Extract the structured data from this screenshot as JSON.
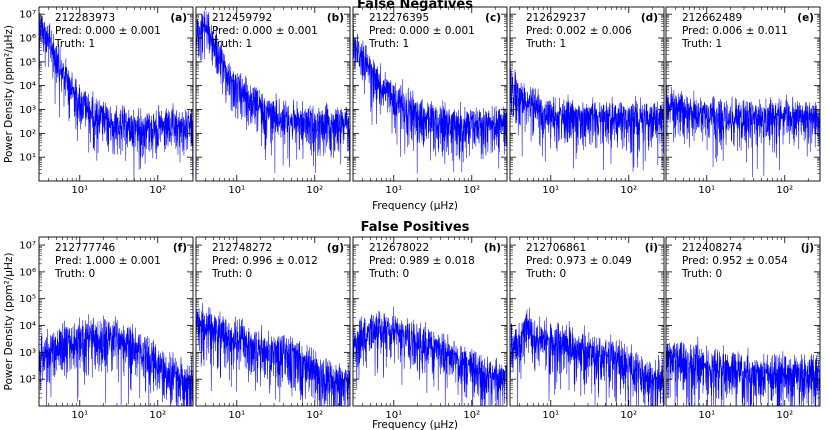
{
  "figure": {
    "ylabel_text": "Power Density (ppm²/μHz)",
    "xlabel_text": "Frequency (μHz)"
  },
  "chart_data": [
    {
      "type": "line",
      "row_title": "False Negatives",
      "panels": [
        {
          "id": "212283973",
          "pred": "Pred: 0.000 ± 0.001",
          "truth": "Truth: 1",
          "tag": "(a)",
          "x": [
            3,
            4,
            5,
            6,
            8,
            10,
            15,
            20,
            30,
            50,
            80,
            120,
            200,
            283
          ],
          "y": [
            8000000.0,
            1000000.0,
            200000.0,
            50000.0,
            10000.0,
            3000.0,
            1000.0,
            500.0,
            300.0,
            250.0,
            250.0,
            250.0,
            250.0,
            250.0
          ]
        },
        {
          "id": "212459792",
          "pred": "Pred: 0.000 ± 0.001",
          "truth": "Truth: 1",
          "tag": "(b)",
          "x": [
            3,
            4,
            5,
            6,
            8,
            10,
            15,
            20,
            30,
            50,
            80,
            120,
            200,
            283
          ],
          "y": [
            2000000.0,
            5000000.0,
            1000000.0,
            200000.0,
            30000.0,
            10000.0,
            3000.0,
            1500.0,
            800.0,
            500.0,
            350.0,
            300.0,
            300.0,
            300.0
          ]
        },
        {
          "id": "212276395",
          "pred": "Pred: 0.000 ± 0.001",
          "truth": "Truth: 1",
          "tag": "(c)",
          "x": [
            3,
            4,
            5,
            6,
            8,
            10,
            15,
            20,
            30,
            50,
            80,
            120,
            200,
            283
          ],
          "y": [
            1000000.0,
            200000.0,
            60000.0,
            20000.0,
            8000.0,
            4000.0,
            1500.0,
            800.0,
            500.0,
            400.0,
            350.0,
            350.0,
            350.0,
            350.0
          ]
        },
        {
          "id": "212629237",
          "pred": "Pred: 0.002 ± 0.006",
          "truth": "Truth: 1",
          "tag": "(d)",
          "x": [
            3,
            4,
            5,
            6,
            8,
            10,
            15,
            20,
            30,
            50,
            80,
            120,
            200,
            283
          ],
          "y": [
            15000.0,
            6000.0,
            3000.0,
            1500.0,
            1000.0,
            800.0,
            700.0,
            600.0,
            600.0,
            600.0,
            600.0,
            600.0,
            600.0,
            600.0
          ]
        },
        {
          "id": "212662489",
          "pred": "Pred: 0.006 ± 0.011",
          "truth": "Truth: 1",
          "tag": "(e)",
          "x": [
            3,
            4,
            5,
            6,
            8,
            10,
            15,
            20,
            30,
            50,
            80,
            120,
            200,
            283
          ],
          "y": [
            3000.0,
            2000.0,
            1200.0,
            1000.0,
            800.0,
            700.0,
            600.0,
            600.0,
            600.0,
            600.0,
            600.0,
            600.0,
            600.0,
            600.0
          ]
        }
      ],
      "xlim": [
        3,
        283
      ],
      "ylim": [
        1,
        20000000
      ],
      "xticks": [
        10,
        100
      ],
      "xtick_labels": [
        "10¹",
        "10²"
      ],
      "yticks": [
        10,
        100,
        1000,
        10000,
        100000,
        1000000,
        10000000
      ],
      "ytick_labels": [
        "10¹",
        "10²",
        "10³",
        "10⁴",
        "10⁵",
        "10⁶",
        "10⁷"
      ],
      "xscale": "log",
      "yscale": "log",
      "color": "#0000ff",
      "grid": false
    },
    {
      "type": "line",
      "row_title": "False Positives",
      "panels": [
        {
          "id": "212777746",
          "pred": "Pred: 1.000 ± 0.001",
          "truth": "Truth: 0",
          "tag": "(f)",
          "x": [
            3,
            4,
            5,
            6,
            8,
            10,
            15,
            20,
            30,
            50,
            80,
            120,
            200,
            283
          ],
          "y": [
            1000.0,
            1500.0,
            2000.0,
            2500.0,
            3000.0,
            4000.0,
            5000.0,
            5000.0,
            4000.0,
            2000.0,
            800.0,
            300.0,
            120.0,
            100.0
          ]
        },
        {
          "id": "212748272",
          "pred": "Pred: 0.996 ± 0.012",
          "truth": "Truth: 0",
          "tag": "(g)",
          "x": [
            3,
            4,
            5,
            6,
            8,
            10,
            15,
            20,
            30,
            50,
            80,
            120,
            200,
            283
          ],
          "y": [
            20000.0,
            10000.0,
            8000.0,
            6000.0,
            5000.0,
            4000.0,
            3000.0,
            2000.0,
            1500.0,
            800.0,
            400.0,
            200.0,
            100.0,
            80.0
          ]
        },
        {
          "id": "212678022",
          "pred": "Pred: 0.989 ± 0.018",
          "truth": "Truth: 0",
          "tag": "(h)",
          "x": [
            3,
            4,
            5,
            6,
            8,
            10,
            15,
            20,
            30,
            50,
            80,
            120,
            200,
            283
          ],
          "y": [
            3000.0,
            6000.0,
            10000.0,
            10000.0,
            8000.0,
            6000.0,
            4000.0,
            3000.0,
            2000.0,
            1000.0,
            500.0,
            250.0,
            150.0,
            120.0
          ]
        },
        {
          "id": "212706861",
          "pred": "Pred: 0.973 ± 0.049",
          "truth": "Truth: 0",
          "tag": "(i)",
          "x": [
            3,
            4,
            5,
            6,
            8,
            10,
            15,
            20,
            30,
            50,
            80,
            120,
            200,
            283
          ],
          "y": [
            2000.0,
            3000.0,
            20000.0,
            4000.0,
            5000.0,
            4000.0,
            3000.0,
            2000.0,
            1500.0,
            1000.0,
            500.0,
            300.0,
            150.0,
            120.0
          ]
        },
        {
          "id": "212408274",
          "pred": "Pred: 0.952 ± 0.054",
          "truth": "Truth: 0",
          "tag": "(j)",
          "x": [
            3,
            4,
            5,
            6,
            8,
            10,
            15,
            20,
            30,
            50,
            80,
            120,
            200,
            283
          ],
          "y": [
            1000.0,
            800.0,
            600.0,
            500.0,
            400.0,
            350.0,
            300.0,
            250.0,
            220.0,
            200.0,
            200.0,
            200.0,
            200.0,
            200.0
          ]
        }
      ],
      "xlim": [
        3,
        283
      ],
      "ylim": [
        10,
        20000000
      ],
      "xticks": [
        10,
        100
      ],
      "xtick_labels": [
        "10¹",
        "10²"
      ],
      "yticks": [
        100,
        1000,
        10000,
        100000,
        1000000,
        10000000
      ],
      "ytick_labels": [
        "10²",
        "10³",
        "10⁴",
        "10⁵",
        "10⁶",
        "10⁷"
      ],
      "xscale": "log",
      "yscale": "log",
      "color": "#0000ff",
      "grid": false
    }
  ]
}
